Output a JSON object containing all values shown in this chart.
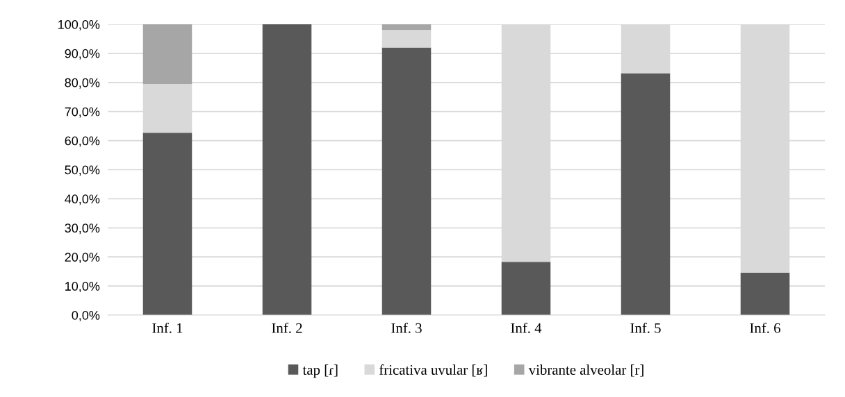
{
  "chart_data": {
    "type": "bar",
    "stacked": true,
    "categories": [
      "Inf. 1",
      "Inf. 2",
      "Inf. 3",
      "Inf. 4",
      "Inf. 5",
      "Inf. 6"
    ],
    "series": [
      {
        "name": "tap [ɾ]",
        "color": "#595959",
        "values": [
          62.7,
          100,
          92.0,
          18.3,
          83.2,
          14.6
        ]
      },
      {
        "name": "fricativa uvular [ʁ]",
        "color": "#d9d9d9",
        "values": [
          16.8,
          0,
          6.1,
          81.7,
          16.8,
          85.4
        ]
      },
      {
        "name": "vibrante alveolar [r]",
        "color": "#a6a6a6",
        "values": [
          20.5,
          0,
          1.9,
          0,
          0,
          0
        ]
      }
    ],
    "ylim": [
      0,
      100
    ],
    "yticks": [
      {
        "value": 0,
        "label": "0,0%"
      },
      {
        "value": 10,
        "label": "10,0%"
      },
      {
        "value": 20,
        "label": "20,0%"
      },
      {
        "value": 30,
        "label": "30,0%"
      },
      {
        "value": 40,
        "label": "40,0%"
      },
      {
        "value": 50,
        "label": "50,0%"
      },
      {
        "value": 60,
        "label": "60,0%"
      },
      {
        "value": 70,
        "label": "70,0%"
      },
      {
        "value": 80,
        "label": "80,0%"
      },
      {
        "value": 90,
        "label": "90,0%"
      },
      {
        "value": 100,
        "label": "100,0%"
      }
    ],
    "grid": "y",
    "legend": "bottom"
  }
}
